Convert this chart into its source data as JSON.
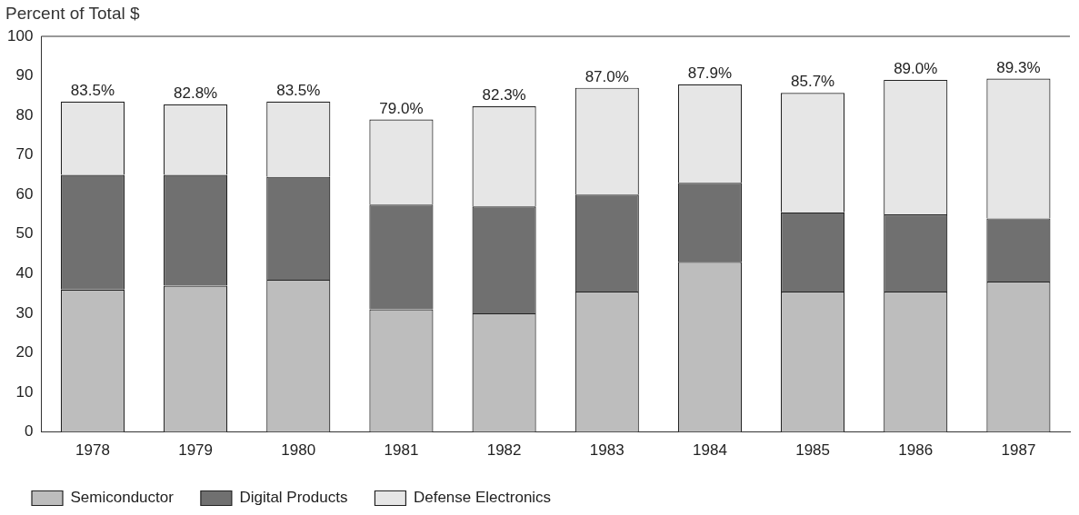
{
  "chart_data": {
    "type": "bar",
    "stacked": true,
    "ylabel": "Percent of Total $",
    "categories": [
      "1978",
      "1979",
      "1980",
      "1981",
      "1982",
      "1983",
      "1984",
      "1985",
      "1986",
      "1987"
    ],
    "series": [
      {
        "name": "Semiconductor",
        "color": "#bdbdbd",
        "values": [
          36,
          37,
          38.5,
          31,
          30,
          35.5,
          43,
          35.5,
          35.5,
          38
        ]
      },
      {
        "name": "Digital Products",
        "color": "#707070",
        "values": [
          29,
          28,
          26,
          26.5,
          27,
          24.5,
          20,
          20,
          19.5,
          16
        ]
      },
      {
        "name": "Defense Electronics",
        "color": "#e6e6e6",
        "values": [
          18.5,
          17.8,
          19,
          21.5,
          25.3,
          27,
          24.9,
          30.2,
          34,
          35.3
        ]
      }
    ],
    "totals": [
      "83.5%",
      "82.8%",
      "83.5%",
      "79.0%",
      "82.3%",
      "87.0%",
      "87.9%",
      "85.7%",
      "89.0%",
      "89.3%"
    ],
    "ylim": [
      0,
      100
    ],
    "yticks": [
      0,
      10,
      20,
      30,
      40,
      50,
      60,
      70,
      80,
      90,
      100
    ],
    "grid": false,
    "legend": "bottom"
  }
}
